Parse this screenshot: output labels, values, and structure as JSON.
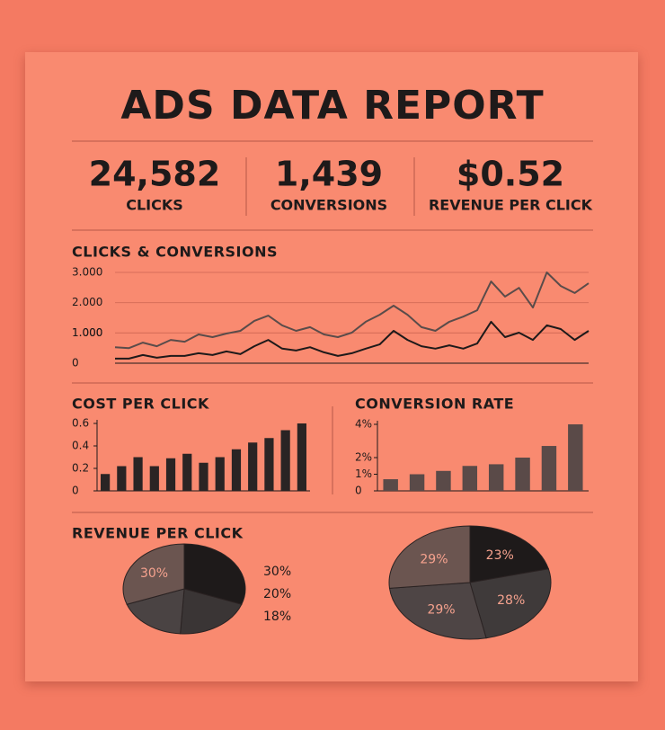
{
  "header": {
    "title": "ADS DATA REPORT"
  },
  "kpis": [
    {
      "value": "24,582",
      "label": "CLICKS"
    },
    {
      "value": "1,439",
      "label": "CONVERSIONS"
    },
    {
      "value": "$0.52",
      "label": "REVENUE PER CLICK"
    }
  ],
  "chart_data": [
    {
      "type": "line",
      "title": "CLICKS & CONVERSIONS",
      "ylim": [
        0,
        3000
      ],
      "yticks": [
        {
          "value": 3000,
          "label": "3.000"
        },
        {
          "value": 2000,
          "label": "2.000"
        },
        {
          "value": 1000,
          "label": "1.000"
        },
        {
          "value": 1000,
          "label": "1.000"
        },
        0
      ],
      "grid": true,
      "series": [
        {
          "color": "#5a4c4a",
          "values": [
            530,
            500,
            680,
            560,
            770,
            710,
            950,
            860,
            980,
            1070,
            1400,
            1570,
            1250,
            1070,
            1190,
            950,
            860,
            1010,
            1370,
            1600,
            1900,
            1600,
            1190,
            1070,
            1370,
            1540,
            1750,
            2700,
            2200,
            2490,
            1840,
            3000,
            2550,
            2320,
            2640
          ]
        },
        {
          "color": "#1e1a1a",
          "values": [
            150,
            150,
            270,
            180,
            240,
            240,
            330,
            270,
            390,
            300,
            560,
            770,
            480,
            420,
            530,
            360,
            240,
            330,
            480,
            620,
            1070,
            770,
            560,
            480,
            590,
            480,
            650,
            1370,
            860,
            1010,
            770,
            1250,
            1130,
            770,
            1070
          ]
        }
      ]
    },
    {
      "type": "bar",
      "title": "COST PER CLICK",
      "ylim": [
        0,
        0.6
      ],
      "yticks": [
        0.6,
        0.4,
        0.2,
        0
      ],
      "color": "#2a2424",
      "values": [
        0.15,
        0.22,
        0.3,
        0.22,
        0.29,
        0.33,
        0.25,
        0.3,
        0.37,
        0.43,
        0.47,
        0.54,
        0.6
      ]
    },
    {
      "type": "bar",
      "title": "CONVERSION RATE",
      "ylim": [
        0,
        4
      ],
      "yticks": [
        {
          "value": 4,
          "label": "4%"
        },
        {
          "value": 2,
          "label": "2%"
        },
        {
          "value": 1,
          "label": "1%"
        },
        0
      ],
      "color": "#5a4a48",
      "values": [
        0.7,
        1.0,
        1.2,
        1.5,
        1.6,
        2.0,
        2.7,
        4.0
      ]
    },
    {
      "type": "pie",
      "title": "REVENUE PER CLICK",
      "values": [
        30,
        20,
        18,
        30
      ],
      "value_labels": [
        "30%",
        "20%",
        "18%",
        "30%"
      ],
      "label_placement": [
        "legend",
        "legend",
        "legend",
        "inside"
      ],
      "colors": [
        "#1e1a1a",
        "#3a3535",
        "#4a4343",
        "#6b5550"
      ]
    },
    {
      "type": "pie",
      "values": [
        23,
        28,
        29,
        29
      ],
      "value_labels": [
        "23%",
        "28%",
        "29%",
        "29%"
      ],
      "label_placement": [
        "inside",
        "inside",
        "inside",
        "inside"
      ],
      "colors": [
        "#1e1a1a",
        "#3f3a3a",
        "#4e4545",
        "#6b5550"
      ]
    }
  ]
}
